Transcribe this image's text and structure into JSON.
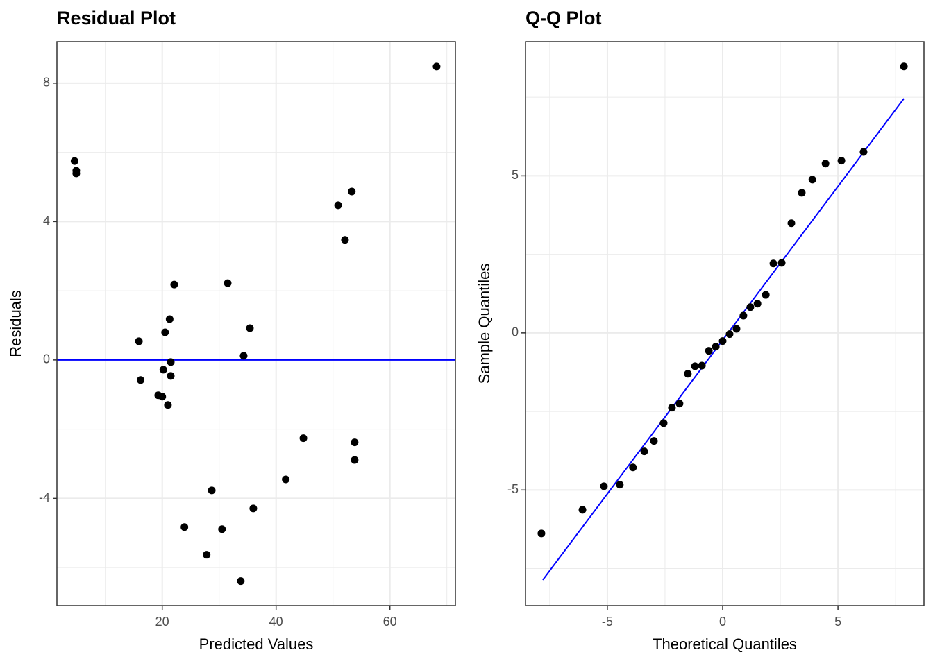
{
  "chart_data": [
    {
      "type": "scatter",
      "title": "Residual Plot",
      "x_label": "Predicted Values",
      "y_label": "Residuals",
      "color": "#000000",
      "x": [
        4.6,
        4.9,
        4.9,
        68.2,
        15.9,
        16.2,
        19.3,
        20.0,
        21.0,
        20.2,
        20.5,
        21.3,
        21.5,
        21.5,
        22.1,
        23.9,
        27.8,
        28.7,
        30.5,
        31.5,
        33.8,
        34.3,
        35.4,
        36.0,
        41.7,
        44.8,
        50.9,
        52.1,
        53.3,
        53.8,
        53.8
      ],
      "y": [
        5.75,
        5.47,
        5.39,
        8.48,
        0.54,
        -0.58,
        -1.02,
        -1.06,
        -1.3,
        -0.28,
        0.8,
        1.18,
        -0.06,
        -0.46,
        2.18,
        -4.83,
        -5.63,
        -3.77,
        -4.89,
        2.22,
        -6.39,
        0.12,
        0.92,
        -4.29,
        -3.45,
        -2.26,
        4.47,
        3.47,
        4.87,
        -2.38,
        -2.89
      ],
      "xlim": [
        1.5,
        71.5
      ],
      "ylim": [
        -7.1,
        9.2
      ],
      "xticks": [
        20,
        40,
        60
      ],
      "yticks": [
        -4,
        0,
        4,
        8
      ],
      "x_minor": [
        10,
        30,
        50,
        70
      ],
      "y_minor": [
        -6,
        -2,
        2,
        6
      ],
      "hline": 0,
      "line_color": "#0000ff",
      "grid": true
    },
    {
      "type": "scatter",
      "title": "Q-Q Plot",
      "x_label": "Theoretical Quantiles",
      "y_label": "Sample Quantiles",
      "color": "#000000",
      "x": [
        -7.86,
        -6.08,
        -5.15,
        -4.46,
        -3.89,
        -3.4,
        -2.98,
        -2.56,
        -2.2,
        -1.87,
        -1.51,
        -1.2,
        -0.9,
        -0.6,
        -0.3,
        0.0,
        0.3,
        0.6,
        0.9,
        1.2,
        1.51,
        1.87,
        2.2,
        2.56,
        2.98,
        3.43,
        3.89,
        4.46,
        5.15,
        6.11,
        7.86
      ],
      "y": [
        -6.38,
        -5.63,
        -4.88,
        -4.83,
        -4.28,
        -3.77,
        -3.44,
        -2.87,
        -2.38,
        -2.25,
        -1.3,
        -1.06,
        -1.04,
        -0.57,
        -0.44,
        -0.26,
        -0.04,
        0.13,
        0.55,
        0.82,
        0.93,
        1.21,
        2.21,
        2.23,
        3.49,
        4.46,
        4.88,
        5.39,
        5.48,
        5.76,
        8.48
      ],
      "xlim": [
        -8.55,
        8.73
      ],
      "ylim": [
        -8.68,
        9.27
      ],
      "xticks": [
        -5,
        0,
        5
      ],
      "yticks": [
        -5,
        0,
        5
      ],
      "x_minor": [
        -7.5,
        -2.5,
        2.5,
        7.5
      ],
      "y_minor": [
        -7.5,
        -2.5,
        2.5,
        7.5
      ],
      "reference_line": {
        "x": [
          -7.8,
          7.86
        ],
        "y": [
          -7.86,
          7.46
        ]
      },
      "line_color": "#0000ff",
      "grid": true
    }
  ]
}
